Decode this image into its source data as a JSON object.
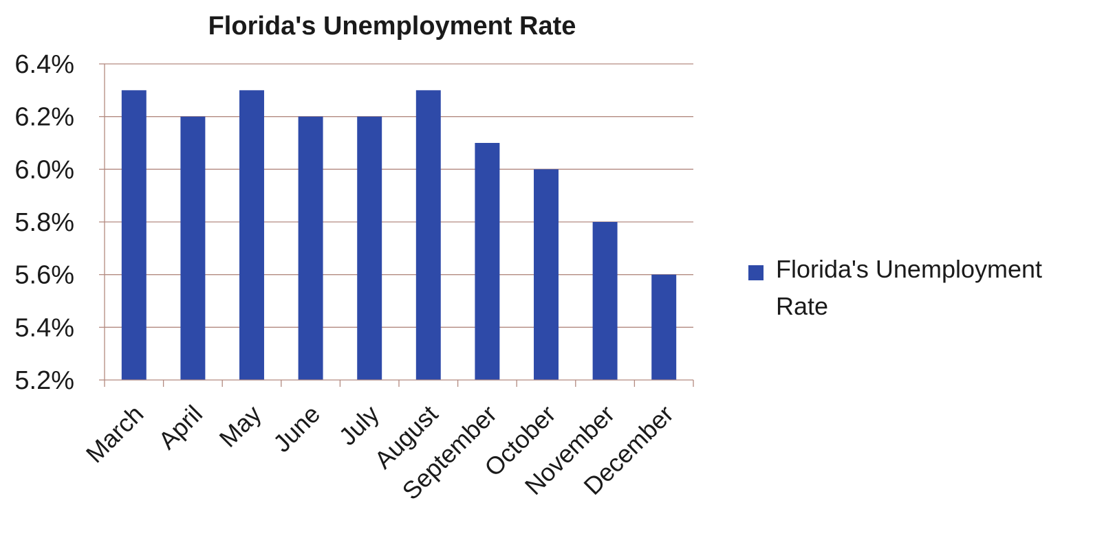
{
  "chart_data": {
    "type": "bar",
    "title": "Florida's Unemployment Rate",
    "categories": [
      "March",
      "April",
      "May",
      "June",
      "July",
      "August",
      "September",
      "October",
      "November",
      "December"
    ],
    "series": [
      {
        "name": "Florida's Unemployment Rate",
        "values": [
          6.3,
          6.2,
          6.3,
          6.2,
          6.2,
          6.3,
          6.1,
          6.0,
          5.8,
          5.6
        ],
        "color": "#2e4aa8"
      }
    ],
    "ylim": [
      5.2,
      6.4
    ],
    "y_ticks": [
      "5.2%",
      "5.4%",
      "5.6%",
      "5.8%",
      "6.0%",
      "6.2%",
      "6.4%"
    ],
    "y_tick_values": [
      5.2,
      5.4,
      5.6,
      5.8,
      6.0,
      6.2,
      6.4
    ],
    "grid": true,
    "grid_color": "#b38a80",
    "legend": {
      "placement": "right",
      "lines": [
        "Florida's Unemployment",
        "Rate"
      ]
    }
  }
}
